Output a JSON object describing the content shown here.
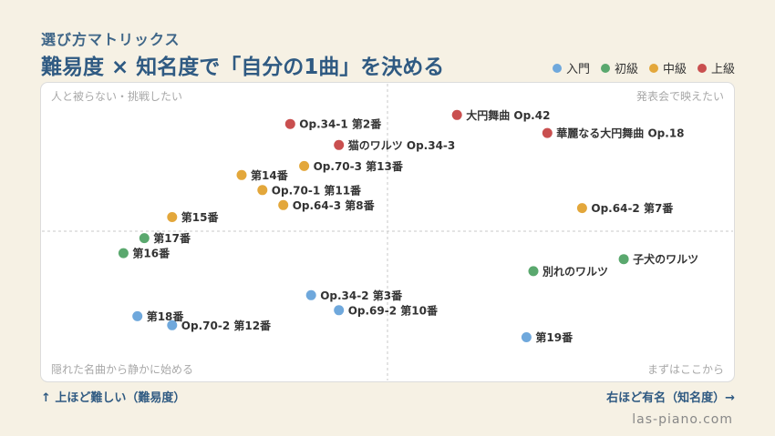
{
  "header": {
    "subtitle": "選び方マトリックス",
    "title": "難易度 × 知名度で「自分の1曲」を決める"
  },
  "footer": {
    "y_axis_label": "↑ 上ほど難しい（難易度）",
    "x_axis_label": "右ほど有名（知名度）→",
    "site": "las-piano.com"
  },
  "colors": {
    "入門": "#6fa8dc",
    "初級": "#5aa86e",
    "中級": "#e3a73b",
    "上級": "#c94f4f"
  },
  "chart_data": {
    "type": "scatter",
    "title": "難易度 × 知名度で「自分の1曲」を決める",
    "xlabel": "右ほど有名（知名度）→",
    "ylabel": "↑ 上ほど難しい（難易度）",
    "xlim": [
      0,
      10
    ],
    "ylim": [
      0,
      10
    ],
    "grid": false,
    "legend_position": "top-right",
    "quadrants": {
      "top_left": "人と被らない・挑戦したい",
      "top_right": "発表会で映えたい",
      "bottom_left": "隠れた名曲から静かに始める",
      "bottom_right": "まずはここから"
    },
    "series": [
      {
        "name": "入門",
        "points": [
          {
            "label": "Op.34-2 第3番",
            "x": 3.9,
            "y": 2.9
          },
          {
            "label": "Op.69-2 第10番",
            "x": 4.3,
            "y": 2.4
          },
          {
            "label": "第18番",
            "x": 1.4,
            "y": 2.2
          },
          {
            "label": "Op.70-2 第12番",
            "x": 1.9,
            "y": 1.9
          },
          {
            "label": "第19番",
            "x": 7.0,
            "y": 1.5
          }
        ]
      },
      {
        "name": "初級",
        "points": [
          {
            "label": "第17番",
            "x": 1.5,
            "y": 4.8
          },
          {
            "label": "第16番",
            "x": 1.2,
            "y": 4.3
          },
          {
            "label": "子犬のワルツ",
            "x": 8.4,
            "y": 4.1
          },
          {
            "label": "別れのワルツ",
            "x": 7.1,
            "y": 3.7
          }
        ]
      },
      {
        "name": "中級",
        "points": [
          {
            "label": "Op.70-3 第13番",
            "x": 3.8,
            "y": 7.2
          },
          {
            "label": "第14番",
            "x": 2.9,
            "y": 6.9
          },
          {
            "label": "Op.70-1 第11番",
            "x": 3.2,
            "y": 6.4
          },
          {
            "label": "Op.64-3 第8番",
            "x": 3.5,
            "y": 5.9
          },
          {
            "label": "第15番",
            "x": 1.9,
            "y": 5.5
          },
          {
            "label": "Op.64-2 第7番",
            "x": 7.8,
            "y": 5.8
          }
        ]
      },
      {
        "name": "上級",
        "points": [
          {
            "label": "Op.34-1 第2番",
            "x": 3.6,
            "y": 8.6
          },
          {
            "label": "猫のワルツ Op.34-3",
            "x": 4.3,
            "y": 7.9
          },
          {
            "label": "大円舞曲 Op.42",
            "x": 6.0,
            "y": 8.9
          },
          {
            "label": "華麗なる大円舞曲 Op.18",
            "x": 7.3,
            "y": 8.3
          }
        ]
      }
    ]
  }
}
